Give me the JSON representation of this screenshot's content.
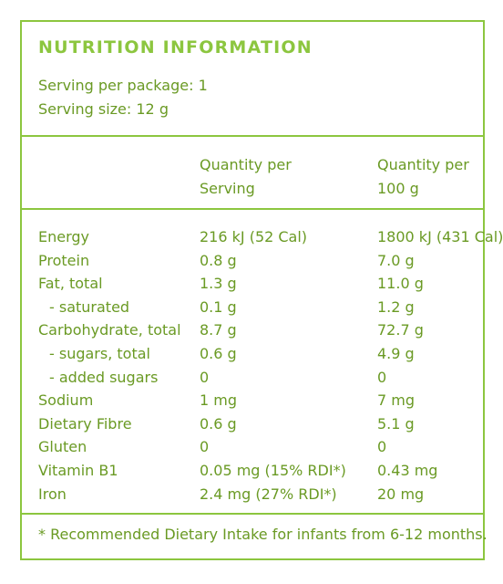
{
  "header": {
    "title": "NUTRITION INFORMATION",
    "servings_per_package": "Serving per package: 1",
    "serving_size": "Serving size: 12 g"
  },
  "table": {
    "columns": [
      "",
      "Quantity per\nServing",
      "Quantity per\n100 g"
    ],
    "rows": [
      [
        "Energy",
        "216 kJ (52 Cal)",
        "1800 kJ (431 Cal)"
      ],
      [
        "Protein",
        "0.8 g",
        "7.0 g"
      ],
      [
        "Fat, total",
        "1.3 g",
        "11.0 g"
      ],
      [
        "- saturated",
        "0.1 g",
        "1.2 g"
      ],
      [
        "Carbohydrate, total",
        "8.7 g",
        "72.7 g"
      ],
      [
        "- sugars, total",
        "0.6 g",
        "4.9 g"
      ],
      [
        "- added sugars",
        "0",
        "0"
      ],
      [
        "Sodium",
        "1 mg",
        "7 mg"
      ],
      [
        "Dietary Fibre",
        "0.6 g",
        "5.1 g"
      ],
      [
        "Gluten",
        "0",
        "0"
      ],
      [
        "Vitamin B1",
        "0.05 mg (15% RDI*)",
        "0.43 mg"
      ],
      [
        "Iron",
        "2.4 mg (27% RDI*)",
        "20 mg"
      ]
    ]
  },
  "footnote": "* Recommended Dietary Intake for infants from 6-12 months."
}
